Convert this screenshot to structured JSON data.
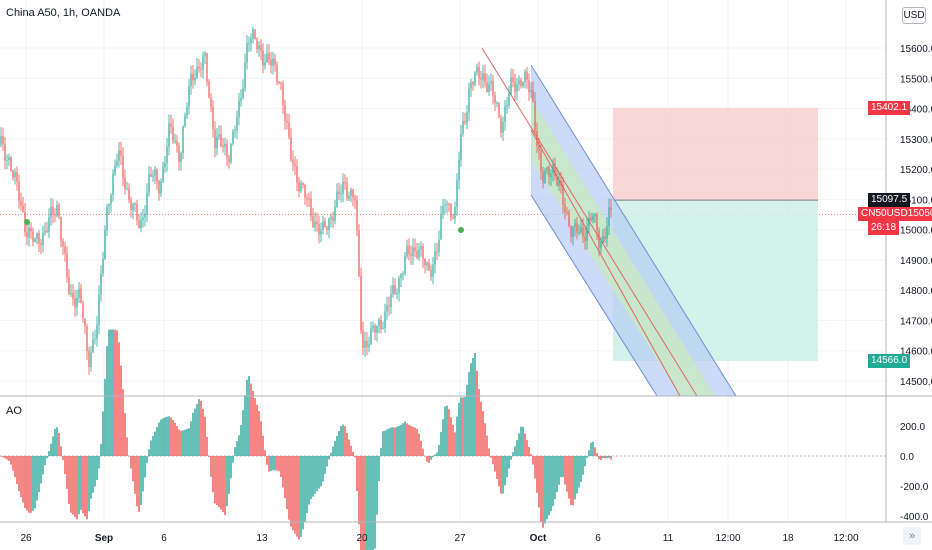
{
  "header": {
    "title": "China A50, 1h, OANDA"
  },
  "indicator": {
    "name": "AO"
  },
  "currency": {
    "label": "USD"
  },
  "price_tags": {
    "stop_loss": "15402.1",
    "entry": "15097.5",
    "symbol": "CN50USD",
    "last_price": "15050.0",
    "countdown": "26:18",
    "target": "14566.0"
  },
  "colors": {
    "up": "#26a69a",
    "down": "#ef5350",
    "stop_zone": "#f7c9c9",
    "target_zone": "#cdeee6",
    "channel_blue": "#b8ccf5",
    "channel_green": "#c8e9c5",
    "channel_line": "#e06666",
    "tag_red": "#f23645",
    "tag_teal": "#22ab94",
    "tag_dark": "#131722"
  },
  "chart_data": [
    {
      "type": "candlestick",
      "title": "China A50, 1h, OANDA",
      "price_axis": {
        "ticks": [
          15600,
          15500,
          15400,
          15300,
          15200,
          15100,
          15000,
          14900,
          14800,
          14700,
          14600,
          14500
        ],
        "range": [
          14450,
          15700
        ]
      },
      "time_axis": {
        "ticks": [
          "26",
          "Sep",
          "6",
          "13",
          "20",
          "27",
          "Oct",
          "6",
          "11",
          "12:00",
          "18",
          "12:00"
        ]
      },
      "trend": [
        {
          "x": 0,
          "y": 15280
        },
        {
          "x": 10,
          "y": 15230
        },
        {
          "x": 25,
          "y": 15020
        },
        {
          "x": 35,
          "y": 14950
        },
        {
          "x": 45,
          "y": 15000
        },
        {
          "x": 58,
          "y": 15080
        },
        {
          "x": 70,
          "y": 14760
        },
        {
          "x": 80,
          "y": 14800
        },
        {
          "x": 88,
          "y": 14550
        },
        {
          "x": 98,
          "y": 14720
        },
        {
          "x": 108,
          "y": 15100
        },
        {
          "x": 118,
          "y": 15250
        },
        {
          "x": 128,
          "y": 15120
        },
        {
          "x": 140,
          "y": 15000
        },
        {
          "x": 150,
          "y": 15180
        },
        {
          "x": 160,
          "y": 15150
        },
        {
          "x": 170,
          "y": 15330
        },
        {
          "x": 180,
          "y": 15250
        },
        {
          "x": 192,
          "y": 15520
        },
        {
          "x": 205,
          "y": 15550
        },
        {
          "x": 215,
          "y": 15300
        },
        {
          "x": 228,
          "y": 15250
        },
        {
          "x": 240,
          "y": 15400
        },
        {
          "x": 248,
          "y": 15650
        },
        {
          "x": 258,
          "y": 15600
        },
        {
          "x": 268,
          "y": 15560
        },
        {
          "x": 280,
          "y": 15500
        },
        {
          "x": 290,
          "y": 15250
        },
        {
          "x": 300,
          "y": 15150
        },
        {
          "x": 312,
          "y": 15050
        },
        {
          "x": 322,
          "y": 14980
        },
        {
          "x": 335,
          "y": 15080
        },
        {
          "x": 345,
          "y": 15150
        },
        {
          "x": 355,
          "y": 15100
        },
        {
          "x": 362,
          "y": 14620
        },
        {
          "x": 372,
          "y": 14650
        },
        {
          "x": 385,
          "y": 14720
        },
        {
          "x": 395,
          "y": 14800
        },
        {
          "x": 405,
          "y": 14900
        },
        {
          "x": 418,
          "y": 14950
        },
        {
          "x": 428,
          "y": 14850
        },
        {
          "x": 438,
          "y": 14950
        },
        {
          "x": 445,
          "y": 15100
        },
        {
          "x": 455,
          "y": 15050
        },
        {
          "x": 460,
          "y": 15280
        },
        {
          "x": 470,
          "y": 15480
        },
        {
          "x": 482,
          "y": 15520
        },
        {
          "x": 492,
          "y": 15450
        },
        {
          "x": 502,
          "y": 15350
        },
        {
          "x": 512,
          "y": 15480
        },
        {
          "x": 522,
          "y": 15500
        },
        {
          "x": 532,
          "y": 15450
        },
        {
          "x": 542,
          "y": 15150
        },
        {
          "x": 552,
          "y": 15220
        },
        {
          "x": 562,
          "y": 15100
        },
        {
          "x": 572,
          "y": 15000
        },
        {
          "x": 582,
          "y": 14980
        },
        {
          "x": 592,
          "y": 15050
        },
        {
          "x": 600,
          "y": 14950
        },
        {
          "x": 610,
          "y": 15050
        }
      ],
      "last_price": 15050.0,
      "position": {
        "entry": 15097.5,
        "stop": 15402.1,
        "target": 14566.0
      }
    },
    {
      "type": "bar",
      "title": "AO",
      "ylim": [
        -400,
        400
      ],
      "yticks": [
        200,
        0,
        -200,
        -400
      ]
    }
  ]
}
